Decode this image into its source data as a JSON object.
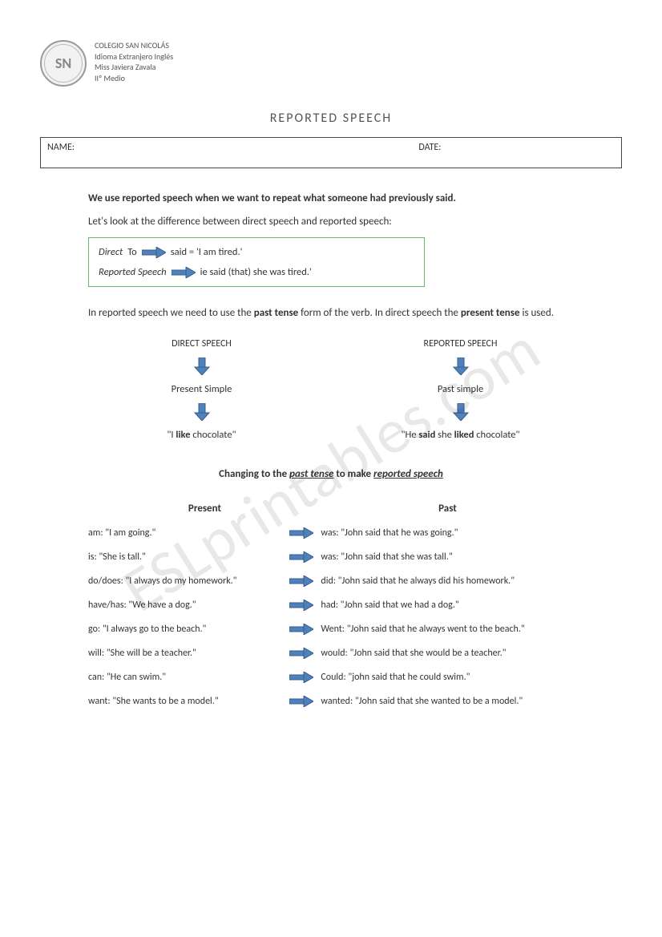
{
  "colors": {
    "arrow_fill": "#4f81bd",
    "arrow_stroke": "#385d8a",
    "box_border": "#6fb96f",
    "text": "#333333",
    "watermark": "rgba(0,0,0,0.09)"
  },
  "header": {
    "logo_text": "SN",
    "school": "COLEGIO SAN NICOLÁS",
    "subject": "Idioma Extranjero Inglés",
    "teacher": "Miss Javiera Zavala",
    "grade": "IIº Medio"
  },
  "title": "REPORTED SPEECH",
  "fields": {
    "name_label": "NAME:",
    "date_label": "DATE:"
  },
  "intro": {
    "bold_line": "We use reported speech when we want to repeat what someone had previously said.",
    "lead": "Let's look at the difference between direct speech and reported speech:",
    "direct_label": "Direct",
    "direct_prefix": "To",
    "direct_text": "said = 'I am tired.'",
    "reported_label": "Reported Speech",
    "reported_text": "ie said (that) she was tired.'"
  },
  "mid": {
    "text_a": "In reported speech we need to use the ",
    "past_tense": "past tense",
    "text_b": " form of the verb. In direct speech the ",
    "present_tense": "present tense",
    "text_c": " is used."
  },
  "flow": {
    "left_head": "DIRECT SPEECH",
    "right_head": "REPORTED SPEECH",
    "left_mid": "Present Simple",
    "right_mid": "Past simple",
    "left_ex_a": "\"I ",
    "left_ex_b": "like",
    "left_ex_c": " chocolate\"",
    "right_ex_a": "\"He ",
    "right_ex_b": "said",
    "right_ex_c": " she ",
    "right_ex_d": "liked",
    "right_ex_e": " chocolate\""
  },
  "subtitle": {
    "a": "Changing to the ",
    "b": "past tense",
    "c": " to make ",
    "d": "reported speech"
  },
  "table": {
    "head_present": "Present",
    "head_past": "Past",
    "rows": [
      {
        "present": "am: \"I am going.\"",
        "past": "was: \"John said that he was going.\""
      },
      {
        "present": "is: \"She is tall.\"",
        "past": "was: \"John said that she was tall.\""
      },
      {
        "present": "do/does: \"I always do my homework.\"",
        "past": "did: \"John said that he always did his homework.\""
      },
      {
        "present": "have/has: \"We have a dog.\"",
        "past": "had: \"John said that we had a dog.\""
      },
      {
        "present": "go: \"I always go to the beach.\"",
        "past": "Went: \"John said that he always went to the beach.\""
      },
      {
        "present": "will: \"She will be a teacher.\"",
        "past": "would: \"John said that she would be a teacher.\""
      },
      {
        "present": "can: \"He can swim.\"",
        "past": "Could: \"john said that he could swim.\""
      },
      {
        "present": "want: \"She wants to be a model.\"",
        "past": "wanted: \"John said that she wanted to be a model.\""
      }
    ]
  },
  "watermark": "ESLprintables.com"
}
